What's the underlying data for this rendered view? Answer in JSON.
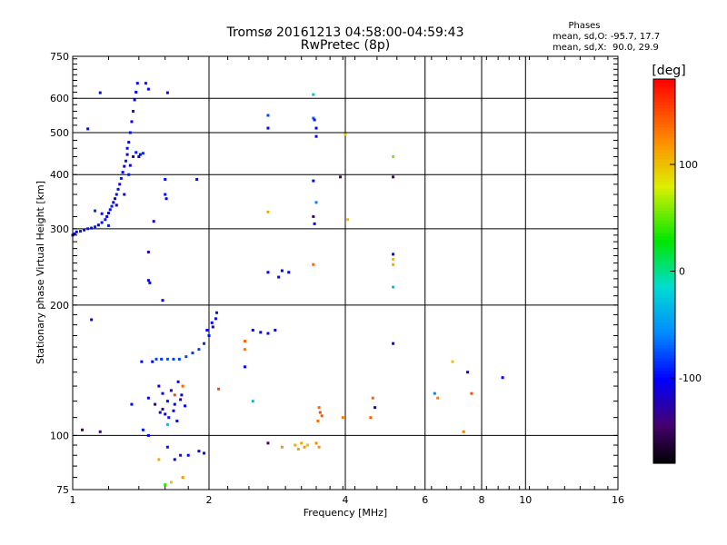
{
  "chart_data": {
    "type": "scatter",
    "title": "Tromsø 20161213 04:58:00-04:59:43",
    "subtitle": "RwPretec (8p)",
    "xlabel": "Frequency [MHz]",
    "ylabel": "Stationary phase Virtual Height [km]",
    "x_scale": "log",
    "y_scale": "log",
    "xlim": [
      1,
      16
    ],
    "ylim": [
      75,
      750
    ],
    "x_ticks": [
      1,
      2,
      4,
      6,
      8,
      10,
      16
    ],
    "x_tick_labels": [
      "1",
      "2",
      "4",
      "6",
      "8",
      "10",
      "16"
    ],
    "y_ticks": [
      75,
      100,
      200,
      300,
      400,
      500,
      600,
      750
    ],
    "y_tick_labels": [
      "75",
      "100",
      "200",
      "300",
      "400",
      "500",
      "600",
      "750"
    ],
    "grid": true,
    "phases_box": {
      "title": "Phases",
      "line1": "mean, sd,O: -95.7, 17.7",
      "line2": "mean, sd,X:  90.0, 29.9"
    },
    "colorbar": {
      "label": "[deg]",
      "range": [
        -180,
        180
      ],
      "ticks": [
        -100,
        0,
        100
      ],
      "tick_labels": [
        "-100",
        "0",
        "100"
      ]
    },
    "points": [
      [
        1.0,
        290,
        -95
      ],
      [
        1.01,
        292,
        -100
      ],
      [
        1.02,
        295,
        -98
      ],
      [
        1.04,
        296,
        -92
      ],
      [
        1.06,
        298,
        -105
      ],
      [
        1.08,
        300,
        -95
      ],
      [
        1.1,
        301,
        -100
      ],
      [
        1.12,
        303,
        -90
      ],
      [
        1.14,
        306,
        -102
      ],
      [
        1.16,
        310,
        -96
      ],
      [
        1.18,
        315,
        -94
      ],
      [
        1.19,
        320,
        -100
      ],
      [
        1.2,
        326,
        -110
      ],
      [
        1.21,
        332,
        -98
      ],
      [
        1.22,
        338,
        -92
      ],
      [
        1.23,
        345,
        -100
      ],
      [
        1.24,
        352,
        -105
      ],
      [
        1.25,
        360,
        -96
      ],
      [
        1.26,
        370,
        -98
      ],
      [
        1.27,
        380,
        -112
      ],
      [
        1.28,
        392,
        -94
      ],
      [
        1.29,
        405,
        -100
      ],
      [
        1.3,
        418,
        -104
      ],
      [
        1.31,
        430,
        -95
      ],
      [
        1.32,
        445,
        -100
      ],
      [
        1.32,
        460,
        -98
      ],
      [
        1.33,
        475,
        -102
      ],
      [
        1.34,
        500,
        -96
      ],
      [
        1.35,
        530,
        -100
      ],
      [
        1.36,
        560,
        -94
      ],
      [
        1.37,
        595,
        -99
      ],
      [
        1.38,
        620,
        -101
      ],
      [
        1.39,
        650,
        -97
      ],
      [
        1.36,
        440,
        -105
      ],
      [
        1.38,
        450,
        -93
      ],
      [
        1.4,
        440,
        -100
      ],
      [
        1.41,
        445,
        -103
      ],
      [
        1.43,
        448,
        -90
      ],
      [
        1.15,
        618,
        -98
      ],
      [
        1.08,
        510,
        -100
      ],
      [
        1.12,
        330,
        -88
      ],
      [
        1.16,
        325,
        -96
      ],
      [
        1.2,
        305,
        -92
      ],
      [
        1.25,
        340,
        -110
      ],
      [
        1.3,
        360,
        -99
      ],
      [
        1.33,
        400,
        -95
      ],
      [
        1.34,
        420,
        -102
      ],
      [
        1.45,
        650,
        -95
      ],
      [
        1.47,
        630,
        -100
      ],
      [
        1.62,
        618,
        -110
      ],
      [
        1.6,
        390,
        -98
      ],
      [
        1.6,
        360,
        -96
      ],
      [
        1.61,
        352,
        -100
      ],
      [
        1.51,
        312,
        -120
      ],
      [
        1.47,
        265,
        -130
      ],
      [
        1.47,
        228,
        -100
      ],
      [
        1.48,
        225,
        -96
      ],
      [
        1.58,
        205,
        -102
      ],
      [
        1.88,
        390,
        -98
      ],
      [
        1.1,
        185,
        -100
      ],
      [
        1.05,
        103,
        -150
      ],
      [
        1.15,
        102,
        -140
      ],
      [
        1.43,
        103,
        -95
      ],
      [
        1.47,
        100,
        -100
      ],
      [
        1.53,
        150,
        -80
      ],
      [
        1.57,
        150,
        -82
      ],
      [
        1.62,
        150,
        -78
      ],
      [
        1.67,
        150,
        -84
      ],
      [
        1.72,
        150,
        -80
      ],
      [
        1.78,
        152,
        -79
      ],
      [
        1.84,
        155,
        -85
      ],
      [
        1.9,
        158,
        -82
      ],
      [
        1.95,
        163,
        -90
      ],
      [
        2.0,
        170,
        -96
      ],
      [
        2.04,
        178,
        -100
      ],
      [
        2.07,
        186,
        -98
      ],
      [
        2.08,
        192,
        -95
      ],
      [
        1.98,
        175,
        -100
      ],
      [
        2.03,
        182,
        -104
      ],
      [
        1.55,
        130,
        -100
      ],
      [
        1.58,
        125,
        -110
      ],
      [
        1.62,
        120,
        -98
      ],
      [
        1.65,
        127,
        -115
      ],
      [
        1.68,
        118,
        -105
      ],
      [
        1.71,
        133,
        -98
      ],
      [
        1.74,
        124,
        -112
      ],
      [
        1.77,
        117,
        -100
      ],
      [
        1.6,
        112,
        -120
      ],
      [
        1.63,
        110,
        -95
      ],
      [
        1.67,
        114,
        -105
      ],
      [
        1.7,
        108,
        -100
      ],
      [
        1.73,
        121,
        -118
      ],
      [
        1.52,
        118,
        -125
      ],
      [
        1.56,
        113,
        -100
      ],
      [
        1.75,
        130,
        140
      ],
      [
        1.68,
        124,
        150
      ],
      [
        1.62,
        106,
        -30
      ],
      [
        1.58,
        115,
        -140
      ],
      [
        1.5,
        148,
        -100
      ],
      [
        1.42,
        148,
        -98
      ],
      [
        1.35,
        118,
        -100
      ],
      [
        1.47,
        122,
        -105
      ],
      [
        1.8,
        90,
        -100
      ],
      [
        1.9,
        92,
        -102
      ],
      [
        1.95,
        91,
        -98
      ],
      [
        1.73,
        90,
        -96
      ],
      [
        1.68,
        88,
        -100
      ],
      [
        1.55,
        88,
        110
      ],
      [
        1.62,
        94,
        -95
      ],
      [
        1.6,
        77,
        40
      ],
      [
        1.65,
        78,
        100
      ],
      [
        1.75,
        80,
        120
      ],
      [
        2.7,
        238,
        -100
      ],
      [
        2.85,
        232,
        -98
      ],
      [
        3.0,
        238,
        -102
      ],
      [
        2.9,
        240,
        -100
      ],
      [
        2.5,
        175,
        -100
      ],
      [
        2.6,
        173,
        -102
      ],
      [
        2.7,
        172,
        -98
      ],
      [
        2.8,
        175,
        -100
      ],
      [
        2.4,
        165,
        140
      ],
      [
        2.4,
        158,
        130
      ],
      [
        2.4,
        144,
        -100
      ],
      [
        2.1,
        128,
        150
      ],
      [
        2.5,
        120,
        -30
      ],
      [
        2.7,
        96,
        -140
      ],
      [
        2.9,
        94,
        120
      ],
      [
        3.1,
        95,
        110
      ],
      [
        3.15,
        93,
        115
      ],
      [
        3.2,
        96,
        112
      ],
      [
        3.25,
        94,
        118
      ],
      [
        3.3,
        95,
        108
      ],
      [
        3.45,
        96,
        125
      ],
      [
        3.5,
        94,
        120
      ],
      [
        3.5,
        116,
        140
      ],
      [
        3.52,
        113,
        150
      ],
      [
        3.55,
        111,
        145
      ],
      [
        3.48,
        108,
        135
      ],
      [
        3.95,
        110,
        130
      ],
      [
        2.7,
        548,
        -80
      ],
      [
        2.7,
        512,
        -100
      ],
      [
        3.4,
        612,
        -30
      ],
      [
        3.4,
        540,
        -70
      ],
      [
        3.42,
        535,
        -95
      ],
      [
        3.45,
        512,
        -100
      ],
      [
        3.45,
        490,
        -105
      ],
      [
        3.4,
        387,
        -100
      ],
      [
        3.4,
        320,
        -140
      ],
      [
        3.42,
        308,
        -100
      ],
      [
        3.4,
        248,
        140
      ],
      [
        2.7,
        328,
        110
      ],
      [
        3.45,
        345,
        -60
      ],
      [
        3.9,
        395,
        -140
      ],
      [
        4.0,
        495,
        100
      ],
      [
        4.05,
        315,
        100
      ],
      [
        3.3,
        95,
        100
      ],
      [
        4.6,
        122,
        140
      ],
      [
        4.65,
        116,
        -120
      ],
      [
        4.55,
        110,
        140
      ],
      [
        5.1,
        440,
        60
      ],
      [
        5.1,
        395,
        -140
      ],
      [
        5.1,
        262,
        -100
      ],
      [
        5.1,
        255,
        100
      ],
      [
        5.1,
        248,
        110
      ],
      [
        5.1,
        220,
        -30
      ],
      [
        5.1,
        163,
        -100
      ],
      [
        6.3,
        125,
        -60
      ],
      [
        6.4,
        122,
        130
      ],
      [
        6.9,
        148,
        100
      ],
      [
        7.3,
        102,
        130
      ],
      [
        7.45,
        140,
        -110
      ],
      [
        7.6,
        125,
        150
      ],
      [
        8.9,
        136,
        -100
      ]
    ]
  }
}
